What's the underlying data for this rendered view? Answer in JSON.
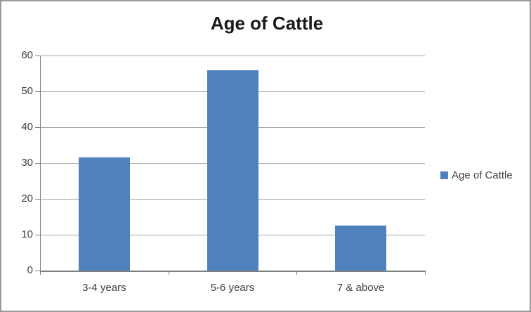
{
  "title": "Age of Cattle",
  "legend": {
    "label": "Age of Cattle"
  },
  "colors": {
    "bar": "#4f81bd",
    "gridline": "#a6a6a6",
    "axis": "#808080",
    "border": "#9a9a9a",
    "text": "#3f3f3f",
    "title_text": "#1a1a1a",
    "background": "#ffffff"
  },
  "chart_data": {
    "type": "bar",
    "title": "Age of Cattle",
    "categories": [
      "3-4 years",
      "5-6 years",
      "7 & above"
    ],
    "series": [
      {
        "name": "Age of Cattle",
        "values": [
          31.6,
          55.9,
          12.6
        ]
      }
    ],
    "xlabel": "",
    "ylabel": "",
    "ylim": [
      0,
      60
    ],
    "yticks": [
      0,
      10,
      20,
      30,
      40,
      50,
      60
    ],
    "grid": true,
    "legend_position": "right"
  }
}
